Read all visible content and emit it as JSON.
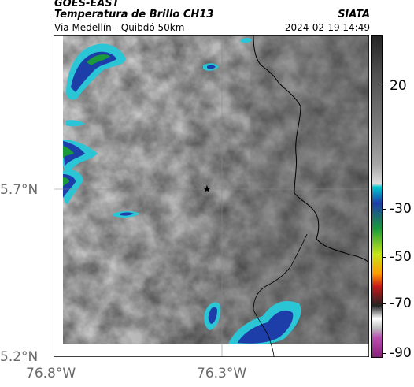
{
  "header": {
    "satellite": "GOES-EAST",
    "product": "Temperatura de Brillo CH13",
    "route": "Via Medellín - Quibdó 50km",
    "organization": "SIATA",
    "timestamp": "2024-02-19 14:49"
  },
  "axes": {
    "lat_labels": [
      "5.7°N",
      "5.2°N"
    ],
    "lon_labels": [
      "76.8°W",
      "76.3°W"
    ]
  },
  "colorbar": {
    "tick_labels": [
      "20",
      "-30",
      "-50",
      "-70",
      "-90"
    ]
  },
  "marker": {
    "symbol": "★",
    "lon": -76.32,
    "lat": 5.7
  },
  "colors": {
    "cold_cloud_blue": "#1d3da8",
    "cold_cloud_green": "#1a9a3a",
    "cloud_edge_cyan": "#2ac6d6",
    "border_line": "#000000",
    "grid_line": "#888888"
  }
}
